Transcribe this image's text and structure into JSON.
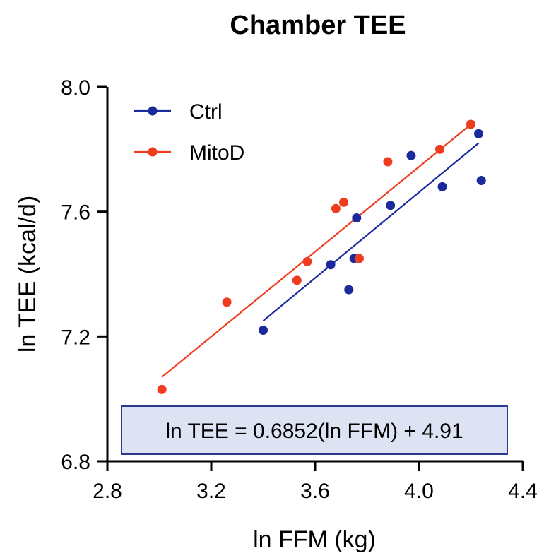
{
  "chart_data": {
    "type": "scatter",
    "title": "Chamber TEE",
    "xlabel": "ln FFM (kg)",
    "ylabel": "ln TEE  (kcal/d)",
    "xlim": [
      2.8,
      4.4
    ],
    "ylim": [
      6.8,
      8.0
    ],
    "xticks": [
      "2.8",
      "3.2",
      "3.6",
      "4.0",
      "4.4"
    ],
    "yticks": [
      "6.8",
      "7.2",
      "7.6",
      "8.0"
    ],
    "legend_position": "top-left",
    "series": [
      {
        "name": "Ctrl",
        "color": "#1a2a9c",
        "x": [
          3.4,
          3.66,
          3.73,
          3.75,
          3.76,
          3.89,
          3.97,
          4.09,
          4.23,
          4.24
        ],
        "y": [
          7.22,
          7.43,
          7.35,
          7.45,
          7.58,
          7.62,
          7.78,
          7.68,
          7.85,
          7.7
        ],
        "fit": {
          "x": [
            3.4,
            4.23
          ],
          "y": [
            7.25,
            7.82
          ]
        }
      },
      {
        "name": "MitoD",
        "color": "#f03c1e",
        "x": [
          3.01,
          3.26,
          3.53,
          3.57,
          3.68,
          3.71,
          3.77,
          3.88,
          4.08,
          4.2
        ],
        "y": [
          7.03,
          7.31,
          7.38,
          7.44,
          7.61,
          7.63,
          7.45,
          7.76,
          7.8,
          7.88
        ],
        "fit": {
          "x": [
            3.01,
            4.2
          ],
          "y": [
            7.07,
            7.88
          ]
        }
      }
    ],
    "annotation": {
      "text": "ln TEE = 0.6852(ln FFM) + 4.91",
      "position": "bottom-center",
      "fill": "#dde3f2",
      "border": "#2b3a8c"
    }
  }
}
